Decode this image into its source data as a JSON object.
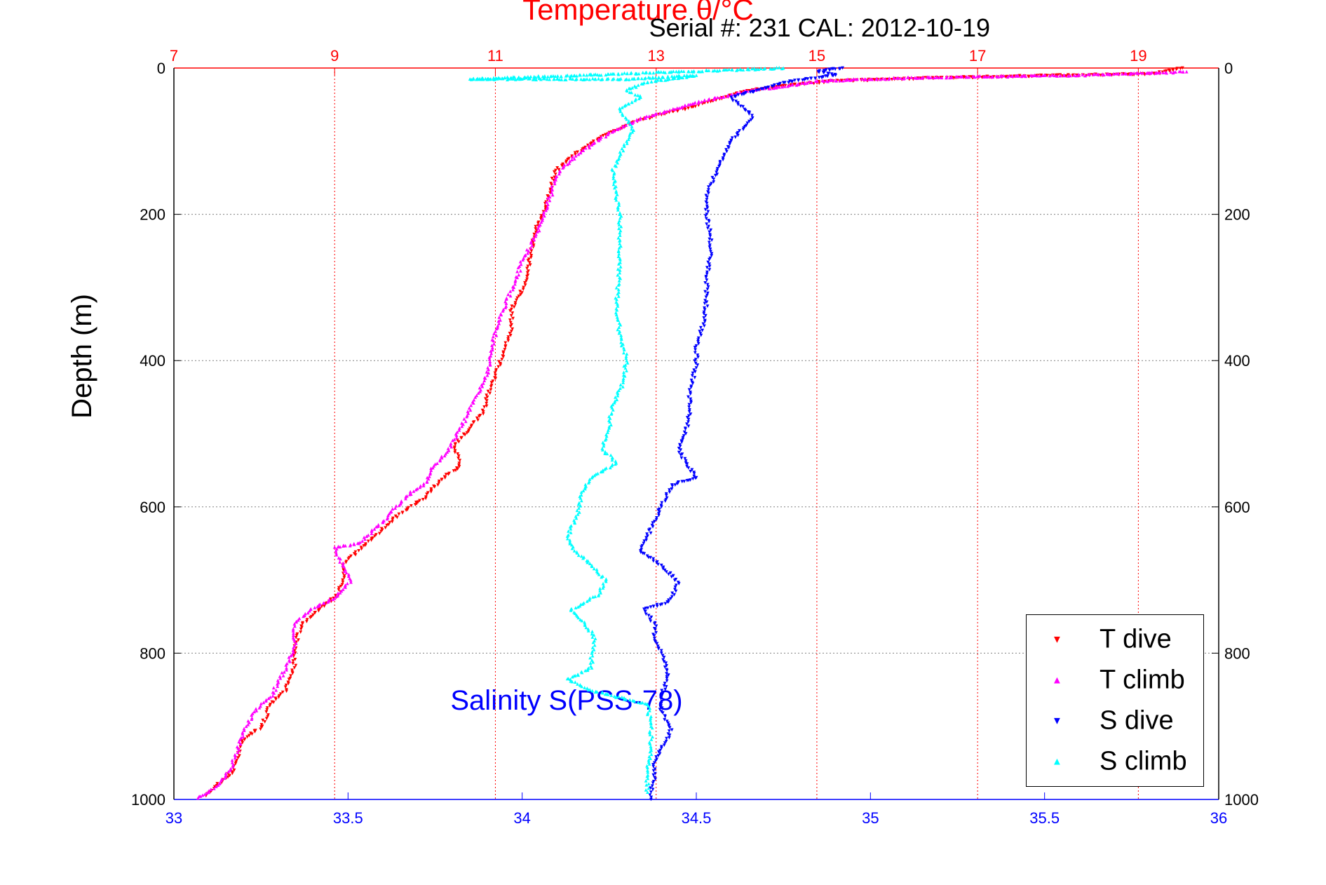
{
  "chart_data": {
    "type": "scatter",
    "title": "Temperature θ/°C",
    "subtitle": "Serial #: 231  CAL: 2012-10-19",
    "ylabel": "Depth (m)",
    "xlabel": "Salinity S(PSS-78)",
    "ylim": [
      1000,
      0
    ],
    "xlim_salinity": [
      33,
      36
    ],
    "xlim_temperature": [
      7,
      20
    ],
    "y_ticks": [
      "0",
      "200",
      "400",
      "600",
      "800",
      "1000"
    ],
    "salinity_ticks": [
      "33",
      "33.5",
      "34",
      "34.5",
      "35",
      "35.5",
      "36"
    ],
    "temperature_ticks": [
      "7",
      "9",
      "11",
      "13",
      "15",
      "17",
      "19"
    ],
    "grid": true,
    "legend_position": "bottom-right",
    "colors": {
      "title": "#ff0000",
      "temperature_axis": "#ff0000",
      "salinity_axis": "#0000ff",
      "grid": "#808080"
    },
    "series": [
      {
        "name": "T dive",
        "axis": "temperature",
        "color": "#ff0000",
        "marker": "triangle-down",
        "points": [
          [
            19.55,
            0
          ],
          [
            19.2,
            8
          ],
          [
            17.2,
            12
          ],
          [
            16.0,
            15
          ],
          [
            15.2,
            18
          ],
          [
            14.8,
            22
          ],
          [
            14.5,
            26
          ],
          [
            14.2,
            30
          ],
          [
            14.0,
            35
          ],
          [
            13.7,
            45
          ],
          [
            13.4,
            55
          ],
          [
            13.0,
            65
          ],
          [
            12.7,
            75
          ],
          [
            12.4,
            90
          ],
          [
            12.1,
            110
          ],
          [
            11.9,
            125
          ],
          [
            11.75,
            140
          ],
          [
            11.7,
            160
          ],
          [
            11.65,
            180
          ],
          [
            11.6,
            200
          ],
          [
            11.5,
            220
          ],
          [
            11.45,
            250
          ],
          [
            11.4,
            280
          ],
          [
            11.35,
            300
          ],
          [
            11.2,
            330
          ],
          [
            11.2,
            360
          ],
          [
            11.1,
            390
          ],
          [
            11.0,
            420
          ],
          [
            10.9,
            450
          ],
          [
            10.85,
            470
          ],
          [
            10.7,
            490
          ],
          [
            10.5,
            515
          ],
          [
            10.55,
            545
          ],
          [
            10.3,
            565
          ],
          [
            10.1,
            590
          ],
          [
            9.8,
            610
          ],
          [
            9.5,
            640
          ],
          [
            9.3,
            660
          ],
          [
            9.1,
            680
          ],
          [
            9.1,
            700
          ],
          [
            9.05,
            720
          ],
          [
            8.8,
            740
          ],
          [
            8.6,
            760
          ],
          [
            8.5,
            790
          ],
          [
            8.5,
            820
          ],
          [
            8.4,
            850
          ],
          [
            8.2,
            870
          ],
          [
            8.1,
            900
          ],
          [
            7.85,
            920
          ],
          [
            7.75,
            960
          ],
          [
            7.5,
            985
          ],
          [
            7.4,
            995
          ]
        ]
      },
      {
        "name": "T climb",
        "axis": "temperature",
        "color": "#ff00ff",
        "marker": "triangle-up",
        "points": [
          [
            19.6,
            5
          ],
          [
            18.2,
            10
          ],
          [
            16.8,
            12
          ],
          [
            15.6,
            15
          ],
          [
            15.0,
            18
          ],
          [
            14.6,
            25
          ],
          [
            14.2,
            30
          ],
          [
            13.8,
            40
          ],
          [
            13.4,
            50
          ],
          [
            13.1,
            60
          ],
          [
            12.8,
            70
          ],
          [
            12.4,
            90
          ],
          [
            12.2,
            105
          ],
          [
            12.0,
            120
          ],
          [
            11.85,
            135
          ],
          [
            11.75,
            150
          ],
          [
            11.7,
            170
          ],
          [
            11.6,
            200
          ],
          [
            11.5,
            230
          ],
          [
            11.35,
            260
          ],
          [
            11.25,
            290
          ],
          [
            11.1,
            330
          ],
          [
            11.0,
            360
          ],
          [
            10.95,
            390
          ],
          [
            10.9,
            420
          ],
          [
            10.75,
            450
          ],
          [
            10.65,
            475
          ],
          [
            10.55,
            495
          ],
          [
            10.4,
            525
          ],
          [
            10.2,
            550
          ],
          [
            10.15,
            565
          ],
          [
            9.9,
            585
          ],
          [
            9.6,
            620
          ],
          [
            9.3,
            650
          ],
          [
            9.0,
            655
          ],
          [
            9.1,
            680
          ],
          [
            9.2,
            700
          ],
          [
            9.0,
            725
          ],
          [
            8.7,
            740
          ],
          [
            8.5,
            760
          ],
          [
            8.5,
            790
          ],
          [
            8.4,
            820
          ],
          [
            8.3,
            840
          ],
          [
            8.2,
            860
          ],
          [
            8.0,
            880
          ],
          [
            7.9,
            900
          ],
          [
            7.8,
            930
          ],
          [
            7.7,
            960
          ],
          [
            7.5,
            985
          ],
          [
            7.3,
            998
          ]
        ]
      },
      {
        "name": "S dive",
        "axis": "salinity",
        "color": "#0000ff",
        "marker": "triangle-down",
        "points": [
          [
            34.92,
            0
          ],
          [
            34.85,
            5
          ],
          [
            34.9,
            10
          ],
          [
            34.82,
            15
          ],
          [
            34.75,
            20
          ],
          [
            34.68,
            30
          ],
          [
            34.6,
            40
          ],
          [
            34.62,
            50
          ],
          [
            34.66,
            65
          ],
          [
            34.64,
            80
          ],
          [
            34.6,
            100
          ],
          [
            34.58,
            120
          ],
          [
            34.56,
            140
          ],
          [
            34.54,
            160
          ],
          [
            34.53,
            180
          ],
          [
            34.53,
            200
          ],
          [
            34.54,
            230
          ],
          [
            34.54,
            260
          ],
          [
            34.53,
            290
          ],
          [
            34.53,
            320
          ],
          [
            34.52,
            350
          ],
          [
            34.5,
            380
          ],
          [
            34.5,
            410
          ],
          [
            34.48,
            440
          ],
          [
            34.48,
            470
          ],
          [
            34.47,
            500
          ],
          [
            34.45,
            520
          ],
          [
            34.47,
            540
          ],
          [
            34.5,
            560
          ],
          [
            34.43,
            570
          ],
          [
            34.4,
            600
          ],
          [
            34.38,
            620
          ],
          [
            34.36,
            640
          ],
          [
            34.34,
            660
          ],
          [
            34.4,
            680
          ],
          [
            34.45,
            705
          ],
          [
            34.42,
            730
          ],
          [
            34.35,
            740
          ],
          [
            34.38,
            760
          ],
          [
            34.38,
            780
          ],
          [
            34.4,
            800
          ],
          [
            34.42,
            830
          ],
          [
            34.4,
            860
          ],
          [
            34.4,
            880
          ],
          [
            34.43,
            905
          ],
          [
            34.4,
            930
          ],
          [
            34.38,
            950
          ],
          [
            34.38,
            970
          ],
          [
            34.37,
            990
          ],
          [
            34.37,
            1000
          ]
        ]
      },
      {
        "name": "S climb",
        "axis": "salinity",
        "color": "#00ffff",
        "marker": "triangle-up",
        "points": [
          [
            34.75,
            0
          ],
          [
            33.85,
            15
          ],
          [
            34.1,
            15
          ],
          [
            34.3,
            15
          ],
          [
            34.5,
            10
          ],
          [
            34.35,
            20
          ],
          [
            34.3,
            30
          ],
          [
            34.34,
            40
          ],
          [
            34.28,
            55
          ],
          [
            34.3,
            70
          ],
          [
            34.32,
            85
          ],
          [
            34.3,
            100
          ],
          [
            34.28,
            120
          ],
          [
            34.26,
            140
          ],
          [
            34.27,
            170
          ],
          [
            34.28,
            200
          ],
          [
            34.28,
            240
          ],
          [
            34.28,
            280
          ],
          [
            34.27,
            320
          ],
          [
            34.28,
            360
          ],
          [
            34.3,
            400
          ],
          [
            34.29,
            430
          ],
          [
            34.26,
            460
          ],
          [
            34.25,
            490
          ],
          [
            34.23,
            520
          ],
          [
            34.27,
            540
          ],
          [
            34.2,
            560
          ],
          [
            34.17,
            580
          ],
          [
            34.16,
            610
          ],
          [
            34.13,
            640
          ],
          [
            34.15,
            660
          ],
          [
            34.2,
            680
          ],
          [
            34.24,
            700
          ],
          [
            34.22,
            720
          ],
          [
            34.14,
            740
          ],
          [
            34.18,
            760
          ],
          [
            34.21,
            780
          ],
          [
            34.2,
            800
          ],
          [
            34.2,
            820
          ],
          [
            34.13,
            835
          ],
          [
            34.19,
            850
          ],
          [
            34.36,
            870
          ],
          [
            34.37,
            900
          ],
          [
            34.37,
            930
          ],
          [
            34.36,
            960
          ],
          [
            34.36,
            990
          ]
        ]
      }
    ]
  }
}
